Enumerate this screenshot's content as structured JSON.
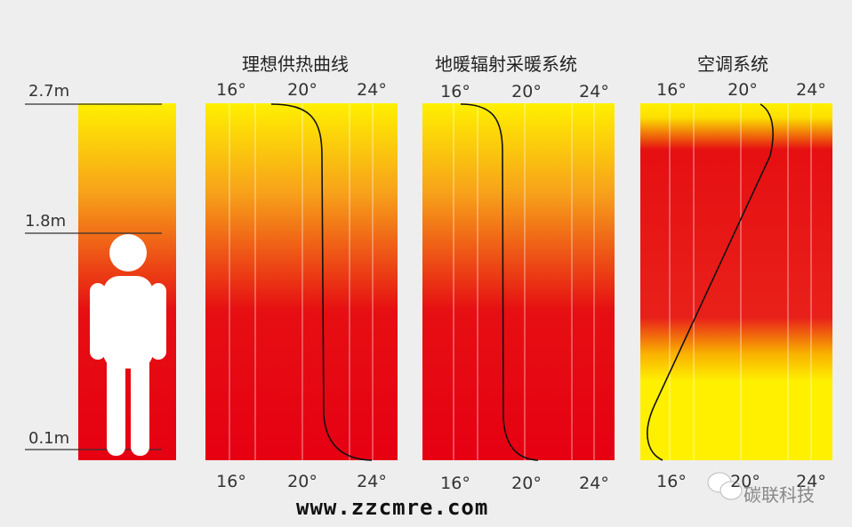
{
  "heights": [
    "2.7m",
    "1.8m",
    "0.1m"
  ],
  "panels": [
    {
      "title": "理想供热曲线",
      "ticks_top": [
        "16°",
        "20°",
        "24°"
      ],
      "ticks_bottom": [
        "16°",
        "20°",
        "24°"
      ]
    },
    {
      "title": "地暖辐射采暖系统",
      "ticks_top": [
        "16°",
        "20°",
        "24°"
      ],
      "ticks_bottom": [
        "16°",
        "20°",
        "24°"
      ]
    },
    {
      "title": "空调系统",
      "ticks_top": [
        "16°",
        "20°",
        "24°"
      ],
      "ticks_bottom": [
        "16°",
        "20°",
        "24°"
      ]
    }
  ],
  "watermark": "www.zzcmre.com",
  "brand": "碳联科技",
  "colors": {
    "hot": "#e60012",
    "warm": "#f39800",
    "cool": "#fff000",
    "background": "#eeeeee"
  },
  "icons": [
    "person-icon",
    "wechat-icon"
  ]
}
